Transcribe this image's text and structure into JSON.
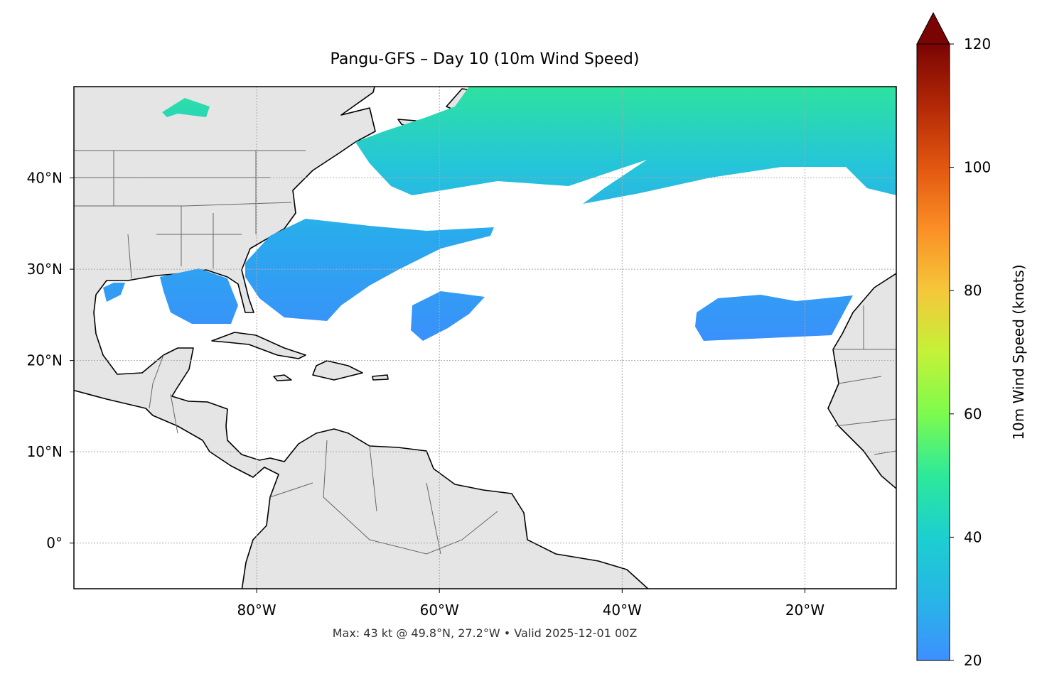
{
  "map": {
    "title": "Pangu-GFS – Day 10 (10m Wind Speed)",
    "xlim": [
      -100,
      -10
    ],
    "ylim": [
      -5,
      50
    ],
    "xticks": [
      {
        "value": -80,
        "label": "80°W"
      },
      {
        "value": -60,
        "label": "60°W"
      },
      {
        "value": -40,
        "label": "40°W"
      },
      {
        "value": -20,
        "label": "20°W"
      }
    ],
    "yticks": [
      {
        "value": 0,
        "label": "0°"
      },
      {
        "value": 10,
        "label": "10°N"
      },
      {
        "value": 20,
        "label": "20°N"
      },
      {
        "value": 30,
        "label": "30°N"
      },
      {
        "value": 40,
        "label": "40°N"
      }
    ],
    "grid": true,
    "footer": "Max: 43 kt @ 49.8°N, 27.2°W • Valid 2025-12-01 00Z"
  },
  "colorbar": {
    "label": "10m Wind Speed (knots)",
    "lim": [
      20,
      120
    ],
    "ticks": [
      20,
      40,
      60,
      80,
      100,
      120
    ],
    "extend": "max"
  }
}
